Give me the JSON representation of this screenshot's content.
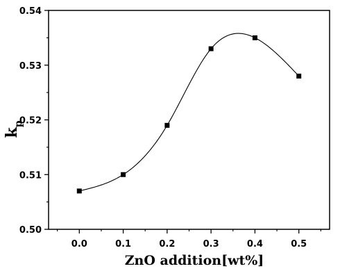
{
  "chart_data": {
    "type": "scatter",
    "title": "",
    "xlabel": "ZnO addition[wt%]",
    "ylabel_main": "k",
    "ylabel_sub": "p",
    "xlim": [
      -0.07,
      0.57
    ],
    "ylim": [
      0.5,
      0.54
    ],
    "xticks": [
      0.0,
      0.1,
      0.2,
      0.3,
      0.4,
      0.5
    ],
    "xtick_labels": [
      "0.0",
      "0.1",
      "0.2",
      "0.3",
      "0.4",
      "0.5"
    ],
    "yticks": [
      0.5,
      0.51,
      0.52,
      0.53,
      0.54
    ],
    "ytick_labels": [
      "0.50",
      "0.51",
      "0.52",
      "0.53",
      "0.54"
    ],
    "grid": false,
    "smooth_curve": true,
    "series": [
      {
        "x": [
          0.0,
          0.1,
          0.2,
          0.3,
          0.4,
          0.5
        ],
        "y": [
          0.507,
          0.51,
          0.519,
          0.533,
          0.535,
          0.528
        ]
      }
    ]
  }
}
